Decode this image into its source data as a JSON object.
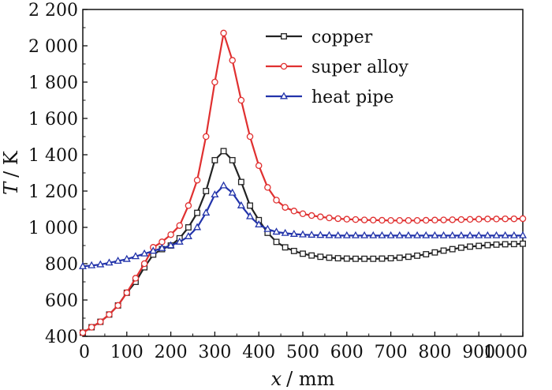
{
  "chart_data": {
    "type": "line",
    "xlabel_var": "x",
    "xlabel_unit": "/ mm",
    "ylabel_var": "T",
    "ylabel_unit": "/ K",
    "xlim": [
      0,
      1000
    ],
    "ylim": [
      400,
      2200
    ],
    "x_ticks": [
      0,
      100,
      200,
      300,
      400,
      500,
      600,
      700,
      800,
      900,
      1000
    ],
    "x_tick_labels": [
      "0",
      "100",
      "200",
      "300",
      "400",
      "500",
      "600",
      "700",
      "800",
      "900",
      "1000"
    ],
    "y_ticks": [
      400,
      600,
      800,
      1000,
      1200,
      1400,
      1600,
      1800,
      2000,
      2200
    ],
    "y_tick_labels": [
      "400",
      "600",
      "800",
      "1 000",
      "1 200",
      "1 400",
      "1 600",
      "1 800",
      "2 000",
      "2 200"
    ],
    "grid": false,
    "legend_position": "top-right",
    "series": [
      {
        "name": "copper",
        "color": "#222222",
        "marker": "square",
        "x": [
          0,
          20,
          40,
          60,
          80,
          100,
          120,
          140,
          160,
          180,
          200,
          220,
          240,
          260,
          280,
          300,
          320,
          340,
          360,
          380,
          400,
          420,
          440,
          460,
          480,
          500,
          520,
          540,
          560,
          580,
          600,
          620,
          640,
          660,
          680,
          700,
          720,
          740,
          760,
          780,
          800,
          820,
          840,
          860,
          880,
          900,
          920,
          940,
          960,
          980,
          1000
        ],
        "y": [
          420,
          450,
          480,
          520,
          570,
          640,
          700,
          780,
          850,
          880,
          900,
          940,
          1000,
          1080,
          1200,
          1370,
          1420,
          1370,
          1250,
          1120,
          1040,
          970,
          920,
          890,
          870,
          855,
          845,
          838,
          833,
          830,
          828,
          827,
          827,
          827,
          828,
          830,
          833,
          838,
          844,
          852,
          862,
          872,
          880,
          888,
          894,
          898,
          902,
          905,
          907,
          908,
          910
        ]
      },
      {
        "name": "super alloy",
        "color": "#e03030",
        "marker": "circle",
        "x": [
          0,
          20,
          40,
          60,
          80,
          100,
          120,
          140,
          160,
          180,
          200,
          220,
          240,
          260,
          280,
          300,
          320,
          340,
          360,
          380,
          400,
          420,
          440,
          460,
          480,
          500,
          520,
          540,
          560,
          580,
          600,
          620,
          640,
          660,
          680,
          700,
          720,
          740,
          760,
          780,
          800,
          820,
          840,
          860,
          880,
          900,
          920,
          940,
          960,
          980,
          1000
        ],
        "y": [
          420,
          450,
          480,
          520,
          570,
          640,
          720,
          800,
          890,
          920,
          960,
          1010,
          1120,
          1260,
          1500,
          1800,
          2070,
          1920,
          1700,
          1500,
          1340,
          1220,
          1150,
          1110,
          1090,
          1075,
          1065,
          1058,
          1052,
          1048,
          1045,
          1043,
          1041,
          1040,
          1039,
          1038,
          1038,
          1038,
          1038,
          1039,
          1040,
          1041,
          1042,
          1043,
          1044,
          1045,
          1046,
          1046,
          1047,
          1047,
          1048
        ]
      },
      {
        "name": "heat pipe",
        "color": "#2233aa",
        "marker": "triangle",
        "x": [
          0,
          20,
          40,
          60,
          80,
          100,
          120,
          140,
          160,
          180,
          200,
          220,
          240,
          260,
          280,
          300,
          320,
          340,
          360,
          380,
          400,
          420,
          440,
          460,
          480,
          500,
          520,
          540,
          560,
          580,
          600,
          620,
          640,
          660,
          680,
          700,
          720,
          740,
          760,
          780,
          800,
          820,
          840,
          860,
          880,
          900,
          920,
          940,
          960,
          980,
          1000
        ],
        "y": [
          785,
          790,
          795,
          805,
          815,
          825,
          840,
          855,
          870,
          885,
          900,
          920,
          950,
          1000,
          1080,
          1180,
          1230,
          1190,
          1120,
          1060,
          1015,
          990,
          975,
          968,
          963,
          960,
          958,
          957,
          956,
          955,
          955,
          955,
          955,
          955,
          955,
          955,
          955,
          955,
          955,
          955,
          955,
          955,
          955,
          955,
          955,
          955,
          955,
          955,
          955,
          955,
          955
        ]
      }
    ]
  }
}
